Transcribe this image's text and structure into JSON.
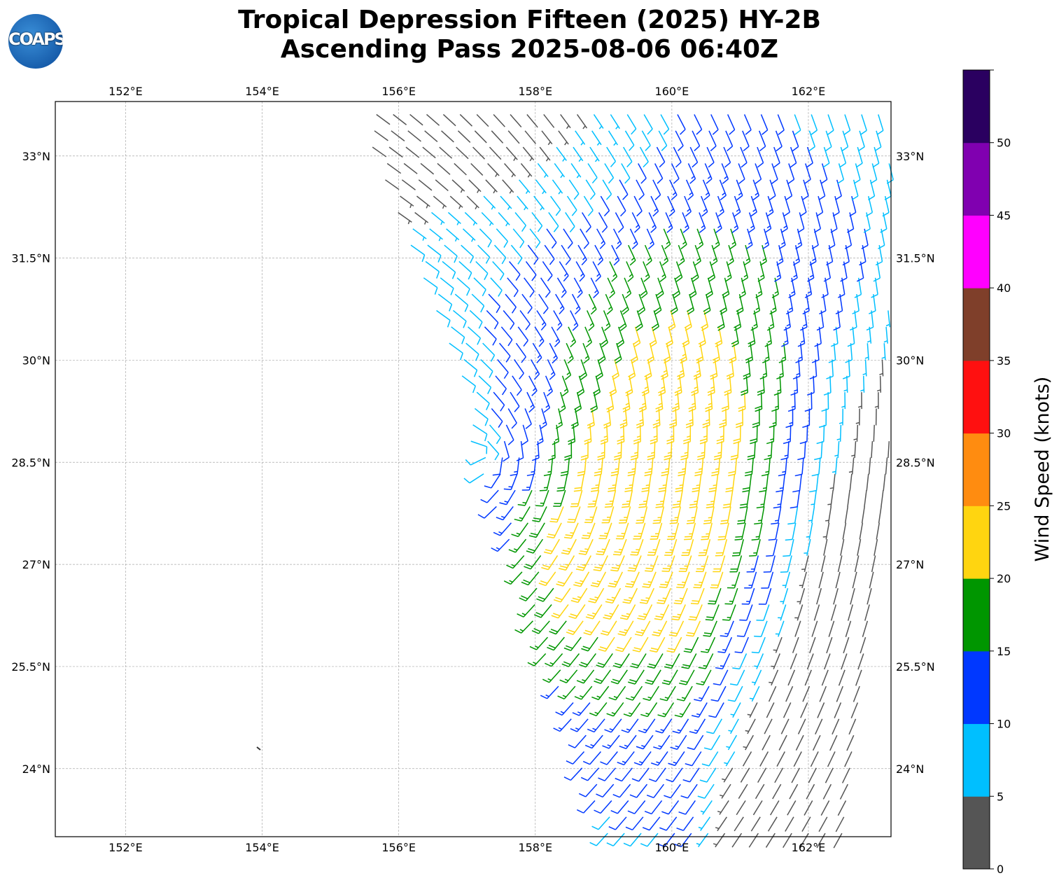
{
  "title_line1": "Tropical Depression Fifteen (2025) HY-2B",
  "title_line2": "Ascending Pass 2025-08-06 06:40Z",
  "logo_text": "COAPS",
  "chart_data": {
    "type": "wind-barb-map",
    "lon_ticks": [
      "152°E",
      "154°E",
      "156°E",
      "158°E",
      "160°E",
      "162°E"
    ],
    "lon_tick_values": [
      152,
      154,
      156,
      158,
      160,
      162
    ],
    "lat_ticks": [
      "33°N",
      "31.5°N",
      "30°N",
      "28.5°N",
      "27°N",
      "25.5°N",
      "24°N"
    ],
    "lat_tick_values": [
      33,
      31.5,
      30,
      28.5,
      27,
      25.5,
      24
    ],
    "lon_range": [
      150.97,
      163.21
    ],
    "lat_range": [
      23.0,
      33.8
    ],
    "circulation_center": {
      "lon": 157.3,
      "lat": 28.6
    },
    "colorbar": {
      "label": "Wind Speed (knots)",
      "ticks": [
        "0",
        "5",
        "10",
        "15",
        "20",
        "25",
        "30",
        "35",
        "40",
        "45",
        "50"
      ],
      "bins": [
        0,
        5,
        10,
        15,
        20,
        25,
        30,
        35,
        40,
        45,
        50,
        55
      ],
      "colors": [
        "#555555",
        "#00bfff",
        "#0038ff",
        "#009600",
        "#ffd510",
        "#ff8c10",
        "#ff1010",
        "#7f3f2a",
        "#ff00ff",
        "#8000b0",
        "#2a0060"
      ]
    }
  }
}
